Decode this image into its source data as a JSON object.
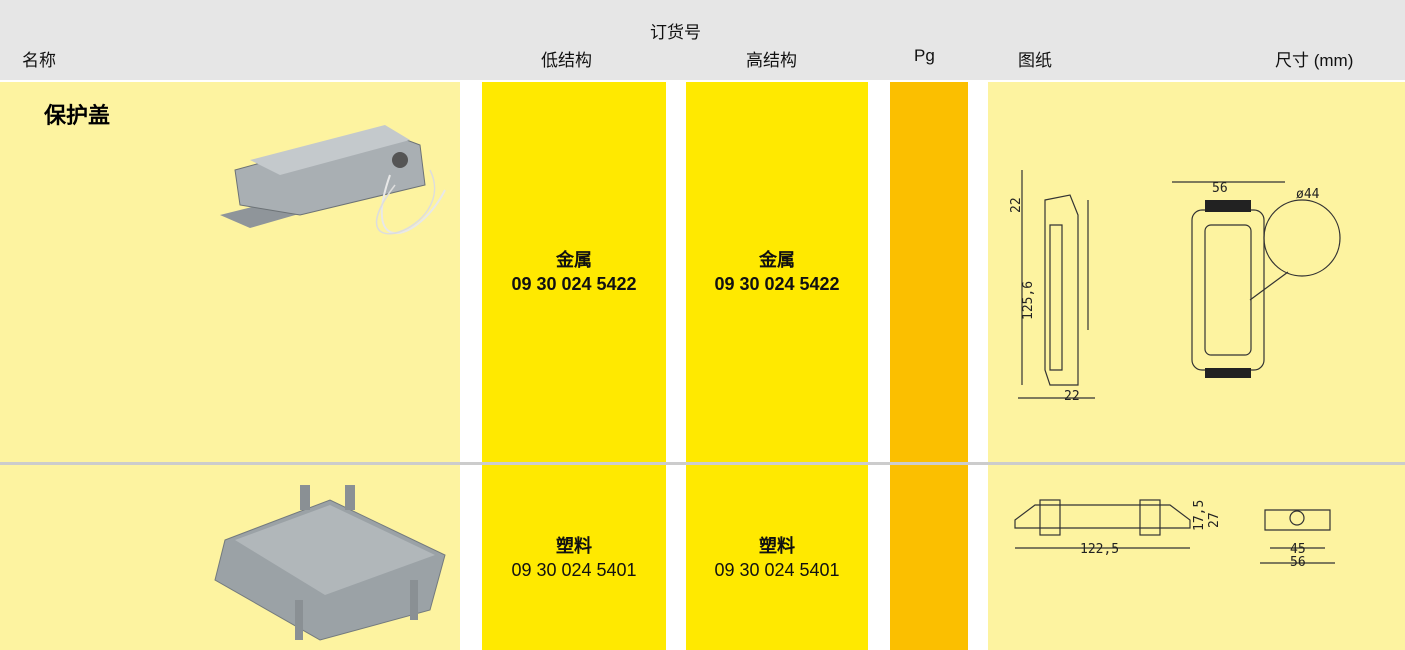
{
  "header": {
    "group": "订货号",
    "columns": [
      "名称",
      "低结构",
      "高结构",
      "Pg",
      "图纸",
      "尺寸 (mm)"
    ]
  },
  "rows": [
    {
      "name": "保护盖",
      "low": {
        "material": "金属",
        "order_no": "09 30 024 5422"
      },
      "high": {
        "material": "金属",
        "order_no": "09 30 024 5422"
      },
      "drawing_labels": [
        "22",
        "125,6",
        "22",
        "56",
        "ø44"
      ]
    },
    {
      "low": {
        "material": "塑料",
        "order_no": "09 30 024 5401"
      },
      "high": {
        "material": "塑料",
        "order_no": "09 30 024 5401"
      },
      "drawing_labels": [
        "17,5",
        "27",
        "122,5",
        "45",
        "56"
      ]
    }
  ]
}
